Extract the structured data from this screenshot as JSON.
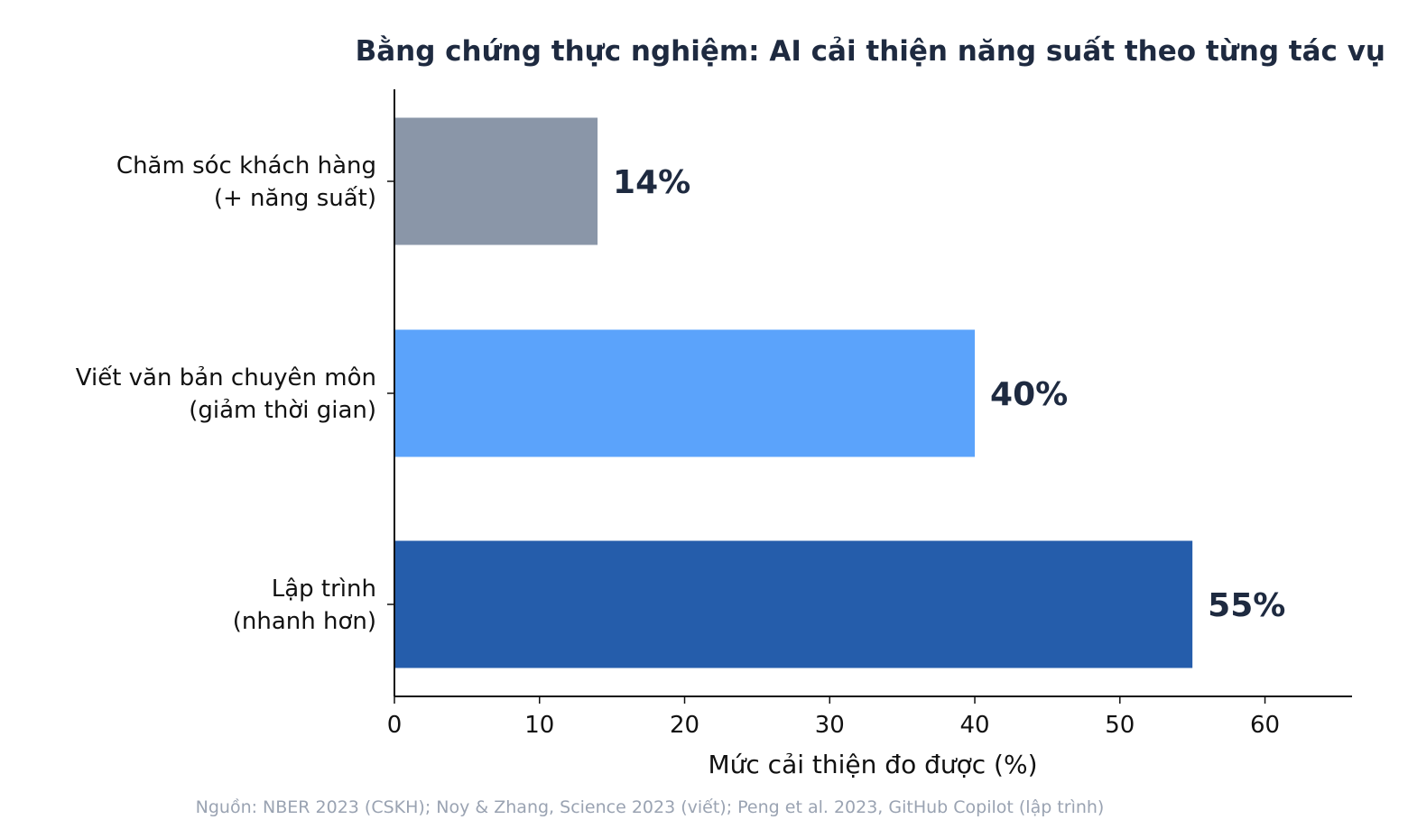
{
  "chart_data": {
    "type": "bar",
    "orientation": "horizontal",
    "title": "Bằng chứng thực nghiệm: AI cải thiện năng suất theo từng tác vụ",
    "xlabel": "Mức cải thiện đo được (%)",
    "ylabel": "",
    "xlim": [
      0,
      66
    ],
    "xticks": [
      "0",
      "10",
      "20",
      "30",
      "40",
      "50",
      "60"
    ],
    "categories": [
      [
        "Chăm sóc khách hàng",
        "(+ năng suất)"
      ],
      [
        "Viết văn bản chuyên môn",
        "(giảm thời gian)"
      ],
      [
        "Lập trình",
        "(nhanh hơn)"
      ]
    ],
    "values": [
      14,
      40,
      55
    ],
    "data_labels": [
      "14%",
      "40%",
      "55%"
    ],
    "colors": [
      "#8a96a8",
      "#5ba3fb",
      "#255dab"
    ],
    "grid": false,
    "legend": "none"
  },
  "source": "Nguồn: NBER 2023 (CSKH); Noy & Zhang, Science 2023 (viết); Peng et al. 2023, GitHub Copilot (lập trình)"
}
